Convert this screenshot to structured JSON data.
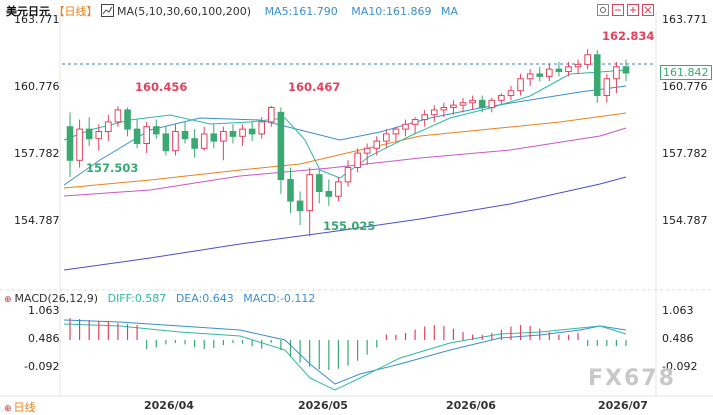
{
  "header": {
    "symbol": "美元日元",
    "period": "【日线】",
    "ma_label": "MA(5,10,30,60,100,200)",
    "ma5": "MA5:161.790",
    "ma10": "MA10:161.869",
    "ma_more": "MA"
  },
  "price_axis": {
    "left": [
      "163.771",
      "160.776",
      "157.782",
      "154.787"
    ],
    "right": [
      "163.771",
      "160.776",
      "157.782",
      "154.787"
    ],
    "current_price": "161.842"
  },
  "annotations": {
    "high1": "160.456",
    "high2": "160.467",
    "high3": "162.834",
    "low1": "157.503",
    "low2": "155.025"
  },
  "macd": {
    "label": "MACD(26,12,9)",
    "diff": "DIFF:0.587",
    "dea": "DEA:0.643",
    "macd": "MACD:-0.112",
    "axis_left": [
      "1.063",
      "0.486",
      "-0.092"
    ],
    "axis_right": [
      "1.063",
      "0.486",
      "-0.092"
    ]
  },
  "footer": {
    "period": "日线",
    "dates": [
      "2026/04",
      "2026/05",
      "2026/06",
      "2026/07"
    ]
  },
  "watermark": "FX678",
  "chart_data": {
    "type": "candlestick",
    "ylim": [
      153.0,
      164.3
    ],
    "candles": [
      [
        159.6,
        160.2,
        157.5,
        158.2
      ],
      [
        158.2,
        159.9,
        157.9,
        159.5
      ],
      [
        159.5,
        160.0,
        158.8,
        159.1
      ],
      [
        159.1,
        159.7,
        158.6,
        159.4
      ],
      [
        159.4,
        160.1,
        159.0,
        159.8
      ],
      [
        159.8,
        160.456,
        159.6,
        160.3
      ],
      [
        160.3,
        160.4,
        159.2,
        159.5
      ],
      [
        159.5,
        159.9,
        158.7,
        158.9
      ],
      [
        158.9,
        159.8,
        158.5,
        159.6
      ],
      [
        159.6,
        159.9,
        159.1,
        159.3
      ],
      [
        159.3,
        159.6,
        158.4,
        158.6
      ],
      [
        158.6,
        159.7,
        158.4,
        159.4
      ],
      [
        159.4,
        159.8,
        158.9,
        159.1
      ],
      [
        159.1,
        159.5,
        158.3,
        158.7
      ],
      [
        158.7,
        159.6,
        158.6,
        159.3
      ],
      [
        159.3,
        159.7,
        158.7,
        159.0
      ],
      [
        159.0,
        159.6,
        158.2,
        159.4
      ],
      [
        159.4,
        159.7,
        158.9,
        159.2
      ],
      [
        159.2,
        159.7,
        158.8,
        159.5
      ],
      [
        159.5,
        159.8,
        159.0,
        159.3
      ],
      [
        159.3,
        160.0,
        159.1,
        159.8
      ],
      [
        159.8,
        160.467,
        159.6,
        160.4
      ],
      [
        160.2,
        160.4,
        156.8,
        157.4
      ],
      [
        157.4,
        157.9,
        156.0,
        156.5
      ],
      [
        156.5,
        156.9,
        155.5,
        156.1
      ],
      [
        156.1,
        157.9,
        155.025,
        157.6
      ],
      [
        157.6,
        157.8,
        156.4,
        156.9
      ],
      [
        156.9,
        157.4,
        156.3,
        156.7
      ],
      [
        156.7,
        157.5,
        156.5,
        157.3
      ],
      [
        157.3,
        158.2,
        157.1,
        157.9
      ],
      [
        157.9,
        158.7,
        157.7,
        158.5
      ],
      [
        158.5,
        158.9,
        158.0,
        158.7
      ],
      [
        158.7,
        159.2,
        158.4,
        159.0
      ],
      [
        159.0,
        159.5,
        158.7,
        159.3
      ],
      [
        159.3,
        159.6,
        159.0,
        159.5
      ],
      [
        159.5,
        159.9,
        159.2,
        159.7
      ],
      [
        159.7,
        160.0,
        159.3,
        159.9
      ],
      [
        159.9,
        160.3,
        159.6,
        160.1
      ],
      [
        160.1,
        160.5,
        159.8,
        160.3
      ],
      [
        160.3,
        160.6,
        160.0,
        160.4
      ],
      [
        160.4,
        160.7,
        160.1,
        160.5
      ],
      [
        160.5,
        160.8,
        160.2,
        160.6
      ],
      [
        160.6,
        160.9,
        160.3,
        160.7
      ],
      [
        160.7,
        160.9,
        160.2,
        160.4
      ],
      [
        160.4,
        160.8,
        160.2,
        160.7
      ],
      [
        160.7,
        161.0,
        160.5,
        160.9
      ],
      [
        160.9,
        161.3,
        160.7,
        161.1
      ],
      [
        161.1,
        161.8,
        160.9,
        161.6
      ],
      [
        161.6,
        162.0,
        161.3,
        161.8
      ],
      [
        161.8,
        162.1,
        161.5,
        161.7
      ],
      [
        161.7,
        162.2,
        161.5,
        162.0
      ],
      [
        162.0,
        162.3,
        161.7,
        161.9
      ],
      [
        161.9,
        162.3,
        161.7,
        162.1
      ],
      [
        162.1,
        162.4,
        161.8,
        162.2
      ],
      [
        162.2,
        162.834,
        162.0,
        162.6
      ],
      [
        162.6,
        162.8,
        160.6,
        160.9
      ],
      [
        160.9,
        161.8,
        160.6,
        161.6
      ],
      [
        161.6,
        162.3,
        161.0,
        162.1
      ],
      [
        162.1,
        162.4,
        161.5,
        161.84
      ]
    ]
  }
}
